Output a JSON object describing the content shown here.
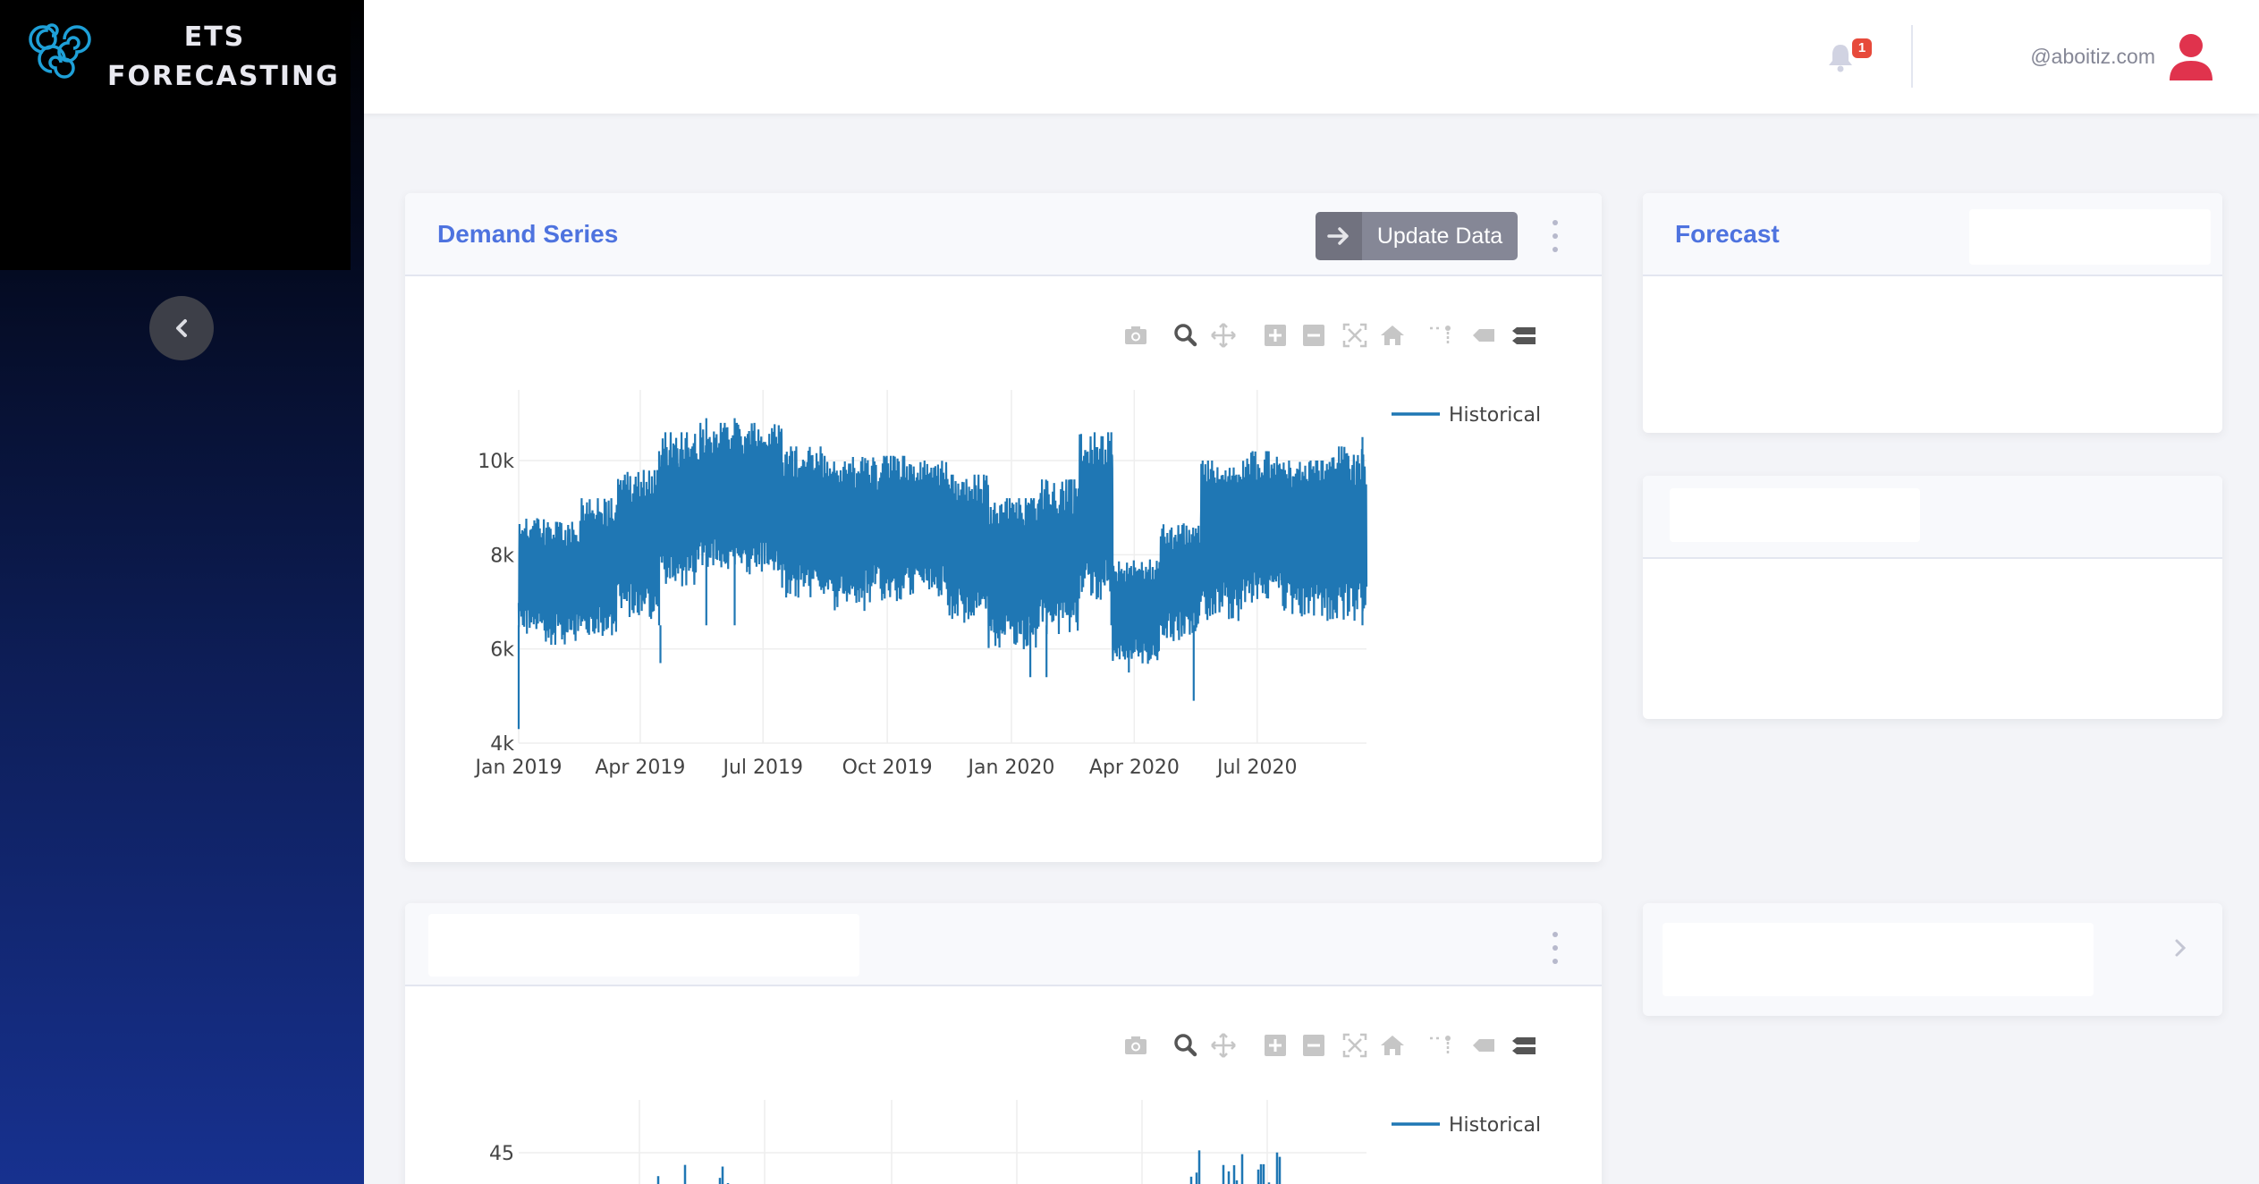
{
  "app": {
    "brand_line1": "ETS",
    "brand_line2": "FORECASTING"
  },
  "sidebar": {
    "collapse_icon": "chevron-left-icon"
  },
  "topbar": {
    "notification_count": "1",
    "user_name": "@aboitiz.com",
    "bell_icon": "bell-icon",
    "avatar_icon": "user-icon"
  },
  "cards": {
    "demand": {
      "title": "Demand Series",
      "update_button_label": "Update Data"
    },
    "forecast": {
      "title": "Forecast"
    }
  },
  "modebar_icons": [
    "camera-icon",
    "zoom-icon",
    "pan-icon",
    "zoom-in-icon",
    "zoom-out-icon",
    "autoscale-icon",
    "home-icon",
    "spike-lines-icon",
    "hover-closest-icon",
    "hover-compare-icon"
  ],
  "colors": {
    "series": "#1f77b4",
    "accent": "#4e73df",
    "button": "#858796",
    "badge": "#e74a3b",
    "avatar": "#e0334d"
  },
  "chart_data": [
    {
      "type": "line",
      "series": [
        {
          "name": "Historical"
        }
      ],
      "x_tick_labels": [
        "Jan 2019",
        "Apr 2019",
        "Jul 2019",
        "Oct 2019",
        "Jan 2020",
        "Apr 2020",
        "Jul 2020"
      ],
      "x_range": [
        "2019-01-01",
        "2020-09-20"
      ],
      "y_tick_labels": [
        "4k",
        "6k",
        "8k",
        "10k"
      ],
      "ylim": [
        4000,
        11500
      ],
      "legend": "top-right",
      "segments": [
        {
          "start": "2019-01-01",
          "end": "2019-01-20",
          "low": 6200,
          "high": 8800
        },
        {
          "start": "2019-01-20",
          "end": "2019-02-15",
          "low": 6000,
          "high": 8700
        },
        {
          "start": "2019-02-15",
          "end": "2019-03-15",
          "low": 6200,
          "high": 9200
        },
        {
          "start": "2019-03-15",
          "end": "2019-04-15",
          "low": 6500,
          "high": 9800
        },
        {
          "start": "2019-04-15",
          "end": "2019-05-15",
          "low": 7200,
          "high": 10600
        },
        {
          "start": "2019-05-15",
          "end": "2019-06-15",
          "low": 7600,
          "high": 10800
        },
        {
          "start": "2019-06-15",
          "end": "2019-07-15",
          "low": 7500,
          "high": 10800
        },
        {
          "start": "2019-07-15",
          "end": "2019-08-15",
          "low": 7000,
          "high": 10300
        },
        {
          "start": "2019-08-15",
          "end": "2019-09-15",
          "low": 6700,
          "high": 10100
        },
        {
          "start": "2019-09-15",
          "end": "2019-10-15",
          "low": 6900,
          "high": 10100
        },
        {
          "start": "2019-10-15",
          "end": "2019-11-15",
          "low": 7000,
          "high": 10000
        },
        {
          "start": "2019-11-15",
          "end": "2019-12-15",
          "low": 6400,
          "high": 9700
        },
        {
          "start": "2019-12-15",
          "end": "2020-01-20",
          "low": 5900,
          "high": 9200
        },
        {
          "start": "2020-01-20",
          "end": "2020-02-20",
          "low": 6200,
          "high": 9600
        },
        {
          "start": "2020-02-20",
          "end": "2020-03-16",
          "low": 6900,
          "high": 10600
        },
        {
          "start": "2020-03-16",
          "end": "2020-04-20",
          "low": 5600,
          "high": 7900
        },
        {
          "start": "2020-04-20",
          "end": "2020-05-20",
          "low": 6100,
          "high": 8700
        },
        {
          "start": "2020-05-20",
          "end": "2020-06-20",
          "low": 6500,
          "high": 10000
        },
        {
          "start": "2020-06-20",
          "end": "2020-07-20",
          "low": 6900,
          "high": 10200
        },
        {
          "start": "2020-07-20",
          "end": "2020-08-20",
          "low": 6600,
          "high": 10000
        },
        {
          "start": "2020-08-20",
          "end": "2020-09-20",
          "low": 6500,
          "high": 10300
        }
      ],
      "extremes": [
        {
          "x": "2019-01-01",
          "y": 4300
        },
        {
          "x": "2019-04-16",
          "y": 5700
        },
        {
          "x": "2019-04-15",
          "y": 10200
        },
        {
          "x": "2019-05-20",
          "y": 10900
        },
        {
          "x": "2019-06-10",
          "y": 10900
        },
        {
          "x": "2020-01-15",
          "y": 5400
        },
        {
          "x": "2020-01-27",
          "y": 5400
        },
        {
          "x": "2020-03-15",
          "y": 10600
        },
        {
          "x": "2020-03-28",
          "y": 5500
        },
        {
          "x": "2020-05-15",
          "y": 4900
        },
        {
          "x": "2020-09-17",
          "y": 10500
        }
      ]
    },
    {
      "type": "bar",
      "series": [
        {
          "name": "Historical"
        }
      ],
      "y_tick_labels": [
        "45"
      ],
      "legend": "top-right"
    }
  ]
}
